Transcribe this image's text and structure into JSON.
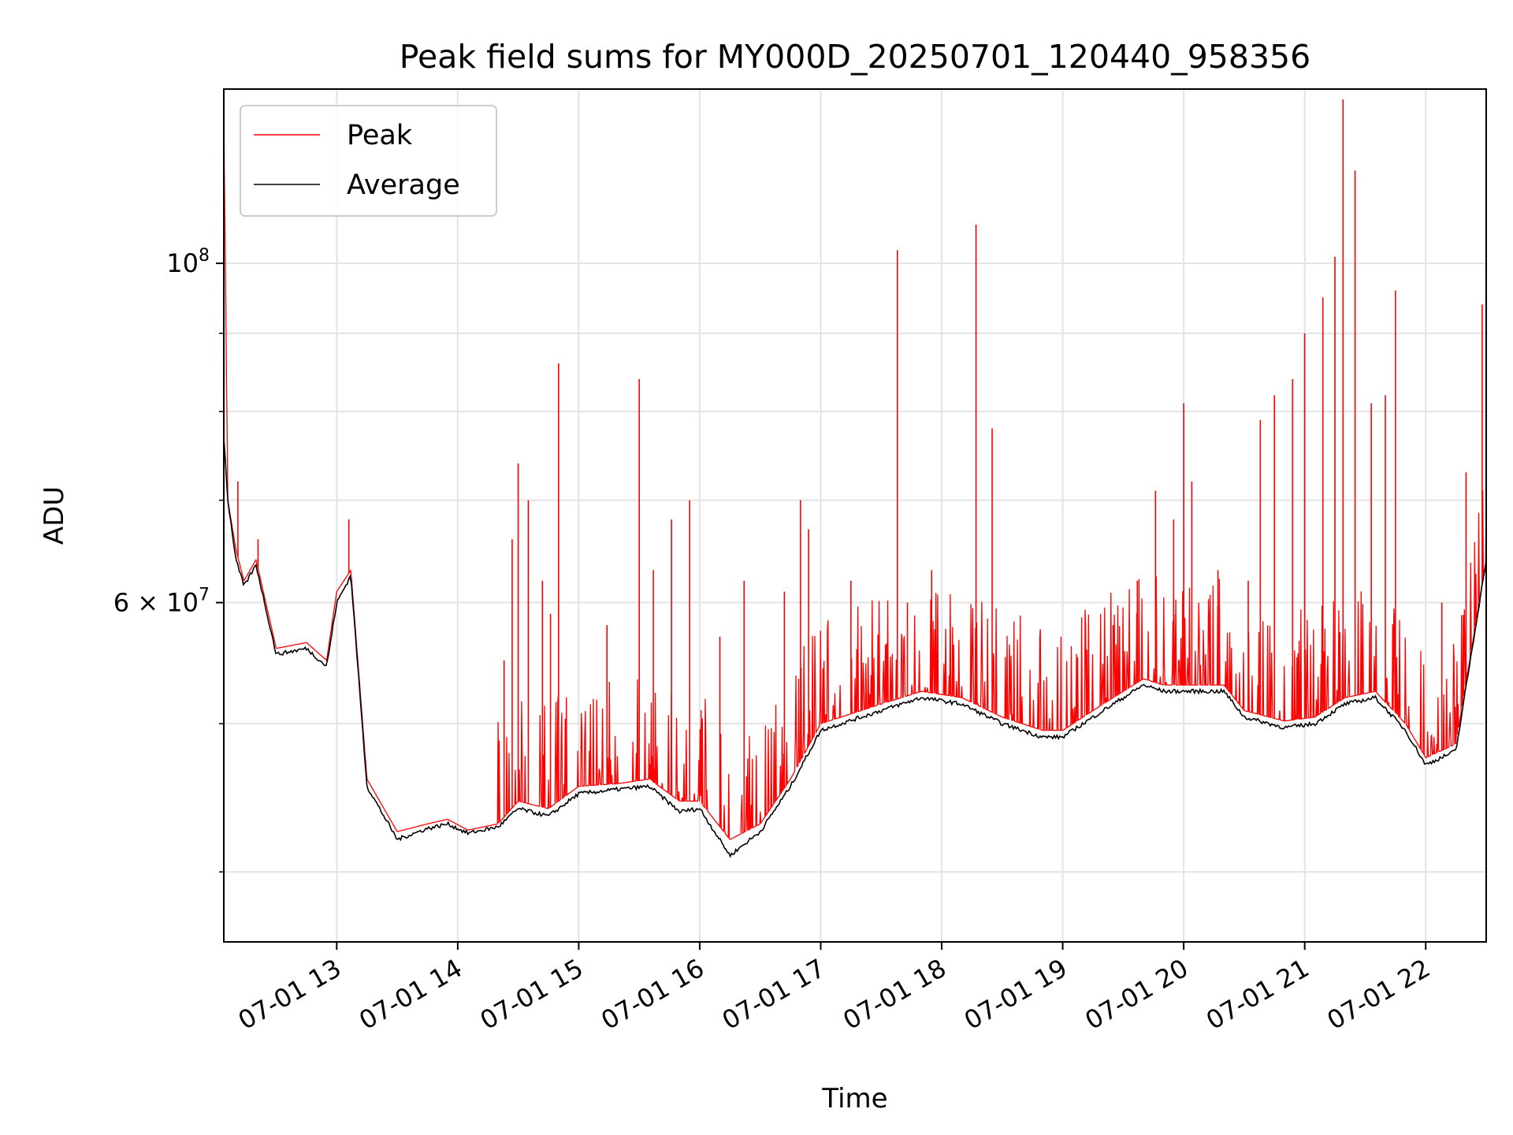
{
  "chart_data": {
    "type": "line",
    "title": "Peak field sums for MY000D_20250701_120440_958356",
    "xlabel": "Time",
    "ylabel": "ADU",
    "yscale": "log",
    "grid": true,
    "legend_position": "top-left",
    "xlim": [
      "2025-07-01 12:04",
      "2025-07-01 22:30"
    ],
    "ylim": [
      36000000,
      130000000
    ],
    "x_ticks": [
      {
        "time": "2025-07-01 13:00",
        "label": "07-01 13"
      },
      {
        "time": "2025-07-01 14:00",
        "label": "07-01 14"
      },
      {
        "time": "2025-07-01 15:00",
        "label": "07-01 15"
      },
      {
        "time": "2025-07-01 16:00",
        "label": "07-01 16"
      },
      {
        "time": "2025-07-01 17:00",
        "label": "07-01 17"
      },
      {
        "time": "2025-07-01 18:00",
        "label": "07-01 18"
      },
      {
        "time": "2025-07-01 19:00",
        "label": "07-01 19"
      },
      {
        "time": "2025-07-01 20:00",
        "label": "07-01 20"
      },
      {
        "time": "2025-07-01 21:00",
        "label": "07-01 21"
      },
      {
        "time": "2025-07-01 22:00",
        "label": "07-01 22"
      }
    ],
    "y_major_ticks": [
      {
        "value": 100000000,
        "mantissa": "",
        "base": "10",
        "exponent": "8"
      },
      {
        "value": 60000000,
        "mantissa": "6 × ",
        "base": "10",
        "exponent": "7"
      }
    ],
    "y_minor_grid": [
      40000000,
      50000000,
      70000000,
      80000000,
      90000000
    ],
    "series": [
      {
        "name": "Peak",
        "color": "#ff0000",
        "baseline": [
          [
            "2025-07-01 12:04",
            125000000
          ],
          [
            "2025-07-01 12:06",
            70000000
          ],
          [
            "2025-07-01 12:10",
            65000000
          ],
          [
            "2025-07-01 12:14",
            62000000
          ],
          [
            "2025-07-01 12:20",
            64000000
          ],
          [
            "2025-07-01 12:30",
            56000000
          ],
          [
            "2025-07-01 12:45",
            56500000
          ],
          [
            "2025-07-01 12:55",
            55000000
          ],
          [
            "2025-07-01 13:00",
            61000000
          ],
          [
            "2025-07-01 13:07",
            63000000
          ],
          [
            "2025-07-01 13:15",
            46000000
          ],
          [
            "2025-07-01 13:30",
            42500000
          ],
          [
            "2025-07-01 13:45",
            43000000
          ],
          [
            "2025-07-01 13:55",
            43300000
          ],
          [
            "2025-07-01 14:05",
            42600000
          ],
          [
            "2025-07-01 14:20",
            43000000
          ],
          [
            "2025-07-01 14:30",
            44500000
          ],
          [
            "2025-07-01 14:45",
            44000000
          ],
          [
            "2025-07-01 15:00",
            45500000
          ],
          [
            "2025-07-01 15:20",
            45700000
          ],
          [
            "2025-07-01 15:35",
            46000000
          ],
          [
            "2025-07-01 15:50",
            44500000
          ],
          [
            "2025-07-01 16:00",
            44500000
          ],
          [
            "2025-07-01 16:15",
            42000000
          ],
          [
            "2025-07-01 16:30",
            43000000
          ],
          [
            "2025-07-01 16:45",
            46000000
          ],
          [
            "2025-07-01 17:00",
            50000000
          ],
          [
            "2025-07-01 17:30",
            51500000
          ],
          [
            "2025-07-01 17:50",
            52500000
          ],
          [
            "2025-07-01 18:10",
            52000000
          ],
          [
            "2025-07-01 18:30",
            50500000
          ],
          [
            "2025-07-01 18:50",
            49500000
          ],
          [
            "2025-07-01 19:00",
            49500000
          ],
          [
            "2025-07-01 19:20",
            51500000
          ],
          [
            "2025-07-01 19:40",
            53500000
          ],
          [
            "2025-07-01 19:50",
            53000000
          ],
          [
            "2025-07-01 20:20",
            53000000
          ],
          [
            "2025-07-01 20:30",
            51000000
          ],
          [
            "2025-07-01 20:50",
            50200000
          ],
          [
            "2025-07-01 21:05",
            50500000
          ],
          [
            "2025-07-01 21:20",
            52000000
          ],
          [
            "2025-07-01 21:35",
            52500000
          ],
          [
            "2025-07-01 21:50",
            50000000
          ],
          [
            "2025-07-01 22:00",
            47500000
          ],
          [
            "2025-07-01 22:15",
            48500000
          ],
          [
            "2025-07-01 22:30",
            64000000
          ]
        ],
        "spikes": [
          [
            "2025-07-01 12:04",
            125000000
          ],
          [
            "2025-07-01 12:11",
            72000000
          ],
          [
            "2025-07-01 12:21",
            66000000
          ],
          [
            "2025-07-01 13:06",
            68000000
          ],
          [
            "2025-07-01 14:23",
            55000000
          ],
          [
            "2025-07-01 14:27",
            66000000
          ],
          [
            "2025-07-01 14:30",
            74000000
          ],
          [
            "2025-07-01 14:35",
            70000000
          ],
          [
            "2025-07-01 14:42",
            62000000
          ],
          [
            "2025-07-01 14:46",
            59000000
          ],
          [
            "2025-07-01 14:50",
            86000000
          ],
          [
            "2025-07-01 15:14",
            58000000
          ],
          [
            "2025-07-01 15:30",
            84000000
          ],
          [
            "2025-07-01 15:37",
            63000000
          ],
          [
            "2025-07-01 15:46",
            68000000
          ],
          [
            "2025-07-01 15:55",
            70000000
          ],
          [
            "2025-07-01 16:10",
            57000000
          ],
          [
            "2025-07-01 16:22",
            62000000
          ],
          [
            "2025-07-01 16:42",
            61000000
          ],
          [
            "2025-07-01 16:50",
            70000000
          ],
          [
            "2025-07-01 16:54",
            67000000
          ],
          [
            "2025-07-01 17:15",
            62000000
          ],
          [
            "2025-07-01 17:38",
            102000000
          ],
          [
            "2025-07-01 17:43",
            60000000
          ],
          [
            "2025-07-01 17:55",
            63000000
          ],
          [
            "2025-07-01 18:17",
            106000000
          ],
          [
            "2025-07-01 18:25",
            78000000
          ],
          [
            "2025-07-01 19:25",
            58000000
          ],
          [
            "2025-07-01 19:37",
            62000000
          ],
          [
            "2025-07-01 19:46",
            71000000
          ],
          [
            "2025-07-01 19:55",
            68000000
          ],
          [
            "2025-07-01 20:00",
            81000000
          ],
          [
            "2025-07-01 20:04",
            72000000
          ],
          [
            "2025-07-01 20:17",
            63000000
          ],
          [
            "2025-07-01 20:32",
            62000000
          ],
          [
            "2025-07-01 20:38",
            79000000
          ],
          [
            "2025-07-01 20:45",
            82000000
          ],
          [
            "2025-07-01 20:54",
            84000000
          ],
          [
            "2025-07-01 21:00",
            90000000
          ],
          [
            "2025-07-01 21:09",
            95000000
          ],
          [
            "2025-07-01 21:15",
            101000000
          ],
          [
            "2025-07-01 21:19",
            128000000
          ],
          [
            "2025-07-01 21:25",
            115000000
          ],
          [
            "2025-07-01 21:33",
            81000000
          ],
          [
            "2025-07-01 21:40",
            82000000
          ],
          [
            "2025-07-01 21:45",
            96000000
          ],
          [
            "2025-07-01 22:08",
            60000000
          ],
          [
            "2025-07-01 22:20",
            73000000
          ],
          [
            "2025-07-01 22:28",
            94000000
          ]
        ]
      },
      {
        "name": "Average",
        "color": "#000000",
        "points": [
          [
            "2025-07-01 12:04",
            77000000
          ],
          [
            "2025-07-01 12:06",
            70000000
          ],
          [
            "2025-07-01 12:10",
            64000000
          ],
          [
            "2025-07-01 12:14",
            61500000
          ],
          [
            "2025-07-01 12:20",
            63500000
          ],
          [
            "2025-07-01 12:30",
            55500000
          ],
          [
            "2025-07-01 12:45",
            56000000
          ],
          [
            "2025-07-01 12:55",
            54500000
          ],
          [
            "2025-07-01 13:00",
            60000000
          ],
          [
            "2025-07-01 13:07",
            62500000
          ],
          [
            "2025-07-01 13:15",
            45500000
          ],
          [
            "2025-07-01 13:30",
            42000000
          ],
          [
            "2025-07-01 13:45",
            42700000
          ],
          [
            "2025-07-01 13:55",
            43000000
          ],
          [
            "2025-07-01 14:05",
            42400000
          ],
          [
            "2025-07-01 14:20",
            42800000
          ],
          [
            "2025-07-01 14:30",
            44000000
          ],
          [
            "2025-07-01 14:45",
            43500000
          ],
          [
            "2025-07-01 15:00",
            45000000
          ],
          [
            "2025-07-01 15:20",
            45300000
          ],
          [
            "2025-07-01 15:35",
            45500000
          ],
          [
            "2025-07-01 15:50",
            43800000
          ],
          [
            "2025-07-01 16:00",
            44000000
          ],
          [
            "2025-07-01 16:15",
            41000000
          ],
          [
            "2025-07-01 16:30",
            42500000
          ],
          [
            "2025-07-01 16:45",
            45500000
          ],
          [
            "2025-07-01 17:00",
            49500000
          ],
          [
            "2025-07-01 17:30",
            51000000
          ],
          [
            "2025-07-01 17:50",
            52000000
          ],
          [
            "2025-07-01 18:10",
            51500000
          ],
          [
            "2025-07-01 18:30",
            50000000
          ],
          [
            "2025-07-01 18:50",
            49000000
          ],
          [
            "2025-07-01 19:00",
            49000000
          ],
          [
            "2025-07-01 19:20",
            51000000
          ],
          [
            "2025-07-01 19:40",
            53000000
          ],
          [
            "2025-07-01 19:50",
            52500000
          ],
          [
            "2025-07-01 20:20",
            52500000
          ],
          [
            "2025-07-01 20:30",
            50500000
          ],
          [
            "2025-07-01 20:50",
            49700000
          ],
          [
            "2025-07-01 21:05",
            50000000
          ],
          [
            "2025-07-01 21:20",
            51500000
          ],
          [
            "2025-07-01 21:35",
            52000000
          ],
          [
            "2025-07-01 21:50",
            49500000
          ],
          [
            "2025-07-01 22:00",
            47000000
          ],
          [
            "2025-07-01 22:15",
            48000000
          ],
          [
            "2025-07-01 22:30",
            64000000
          ]
        ]
      }
    ]
  }
}
